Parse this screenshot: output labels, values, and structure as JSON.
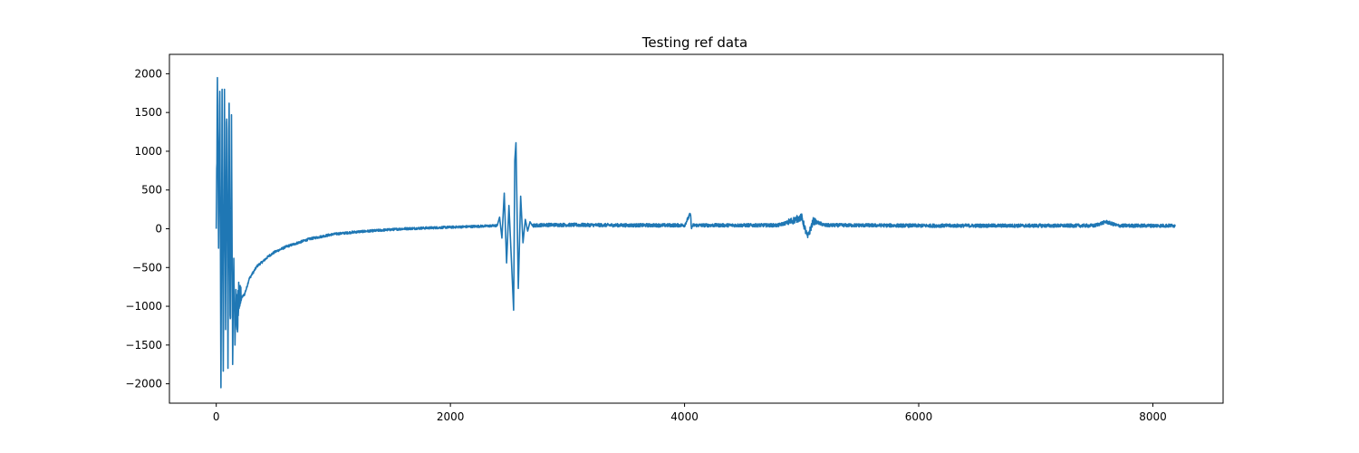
{
  "chart_data": {
    "type": "line",
    "title": "Testing ref data",
    "xlabel": "",
    "ylabel": "",
    "xlim": [
      -400,
      8600
    ],
    "ylim": [
      -2250,
      2250
    ],
    "x_ticks": [
      0,
      2000,
      4000,
      6000,
      8000
    ],
    "x_tick_labels": [
      "0",
      "2000",
      "4000",
      "6000",
      "8000"
    ],
    "y_ticks": [
      -2000,
      -1500,
      -1000,
      -500,
      0,
      500,
      1000,
      1500,
      2000
    ],
    "y_tick_labels": [
      "−2000",
      "−1500",
      "−1000",
      "−500",
      "0",
      "500",
      "1000",
      "1500",
      "2000"
    ],
    "grid": false,
    "legend": "none",
    "n_samples": 8192,
    "series": [
      {
        "color": "#1f77b4",
        "x": [
          0,
          10,
          20,
          30,
          40,
          50,
          60,
          70,
          80,
          90,
          100,
          110,
          120,
          130,
          140,
          150,
          160,
          170,
          180,
          190,
          200,
          220,
          240,
          260,
          280,
          300,
          350,
          400,
          450,
          500,
          600,
          700,
          800,
          900,
          1000,
          1200,
          1400,
          1600,
          1800,
          2000,
          2200,
          2400,
          2420,
          2440,
          2460,
          2480,
          2500,
          2520,
          2540,
          2550,
          2560,
          2580,
          2600,
          2620,
          2640,
          2660,
          2680,
          2700,
          2800,
          3000,
          3500,
          4000,
          4050,
          4060,
          4070,
          4100,
          4500,
          4800,
          4900,
          5000,
          5050,
          5100,
          5200,
          5500,
          6000,
          6500,
          7000,
          7500,
          7600,
          7700,
          8000,
          8191
        ],
        "y": [
          0,
          1950,
          -250,
          2040,
          -2050,
          1800,
          -2050,
          1800,
          -1300,
          2040,
          -1800,
          1620,
          -1800,
          1470,
          -1750,
          -510,
          -1500,
          -900,
          -1400,
          -1050,
          -1000,
          -880,
          -850,
          -760,
          -650,
          -600,
          -480,
          -420,
          -350,
          -300,
          -230,
          -180,
          -130,
          -100,
          -70,
          -40,
          -20,
          0,
          10,
          20,
          30,
          40,
          150,
          -120,
          460,
          -440,
          300,
          -370,
          -1050,
          880,
          1110,
          -770,
          420,
          -180,
          120,
          -30,
          90,
          40,
          50,
          50,
          45,
          45,
          195,
          0,
          45,
          45,
          45,
          45,
          90,
          150,
          -110,
          100,
          45,
          45,
          40,
          40,
          40,
          40,
          90,
          40,
          40,
          40
        ]
      }
    ]
  }
}
